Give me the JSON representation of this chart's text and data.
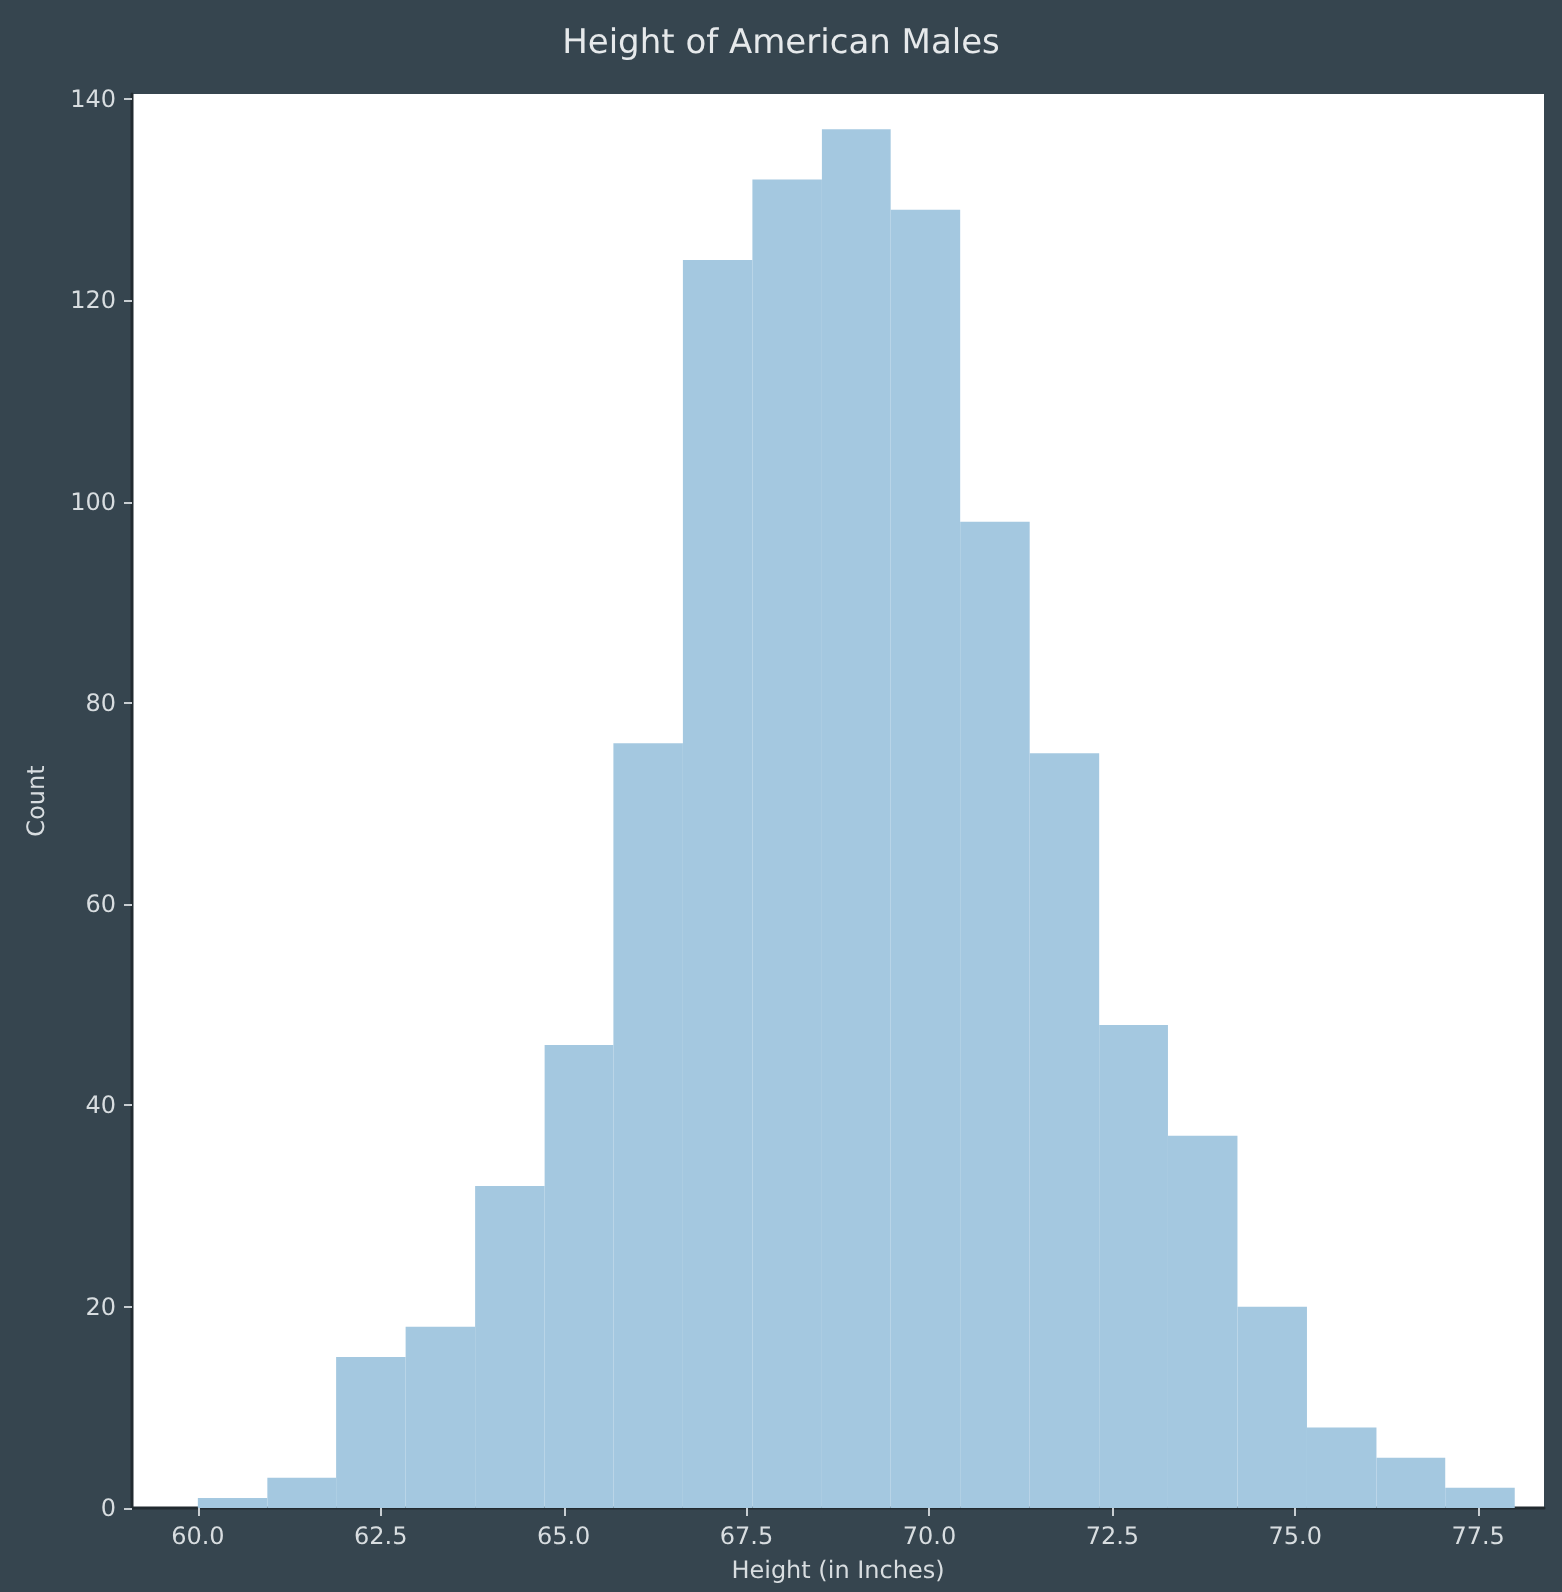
{
  "chart_data": {
    "type": "histogram",
    "title": "Height of American Males",
    "xlabel": "Height (in Inches)",
    "ylabel": "Count",
    "bins": [
      60,
      60.95,
      61.89,
      62.84,
      63.79,
      64.74,
      65.68,
      66.63,
      67.58,
      68.53,
      69.47,
      70.42,
      71.37,
      72.32,
      73.26,
      74.21,
      75.16,
      76.11,
      77.05,
      78
    ],
    "values": [
      1,
      3,
      15,
      18,
      32,
      46,
      76,
      124,
      132,
      137,
      129,
      98,
      75,
      48,
      37,
      20,
      8,
      5,
      2
    ],
    "color": "#a4c8e0",
    "xlim": [
      59.1,
      78.4
    ],
    "xticks": [
      {
        "value": 60,
        "label": "60.0"
      },
      {
        "value": 62.5,
        "label": "62.5"
      },
      {
        "value": 65,
        "label": "65.0"
      },
      {
        "value": 67.5,
        "label": "67.5"
      },
      {
        "value": 70,
        "label": "70.0"
      },
      {
        "value": 72.5,
        "label": "72.5"
      },
      {
        "value": 75,
        "label": "75.0"
      },
      {
        "value": 77.5,
        "label": "77.5"
      }
    ],
    "ylim": [
      0,
      140.5
    ],
    "yticks": [
      0,
      20,
      40,
      60,
      80,
      100,
      120,
      140
    ],
    "grid": false
  }
}
